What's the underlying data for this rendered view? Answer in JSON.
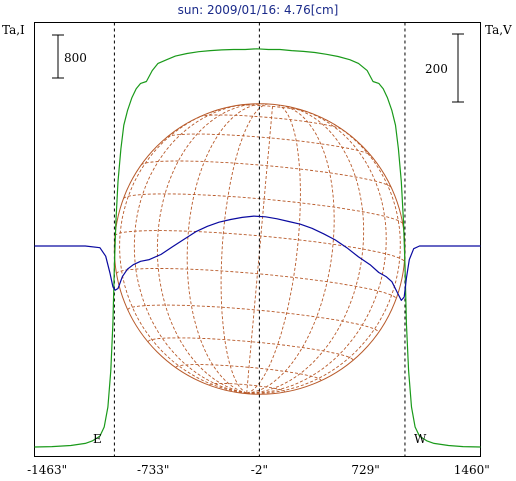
{
  "chart_data": {
    "type": "line",
    "title": "sun: 2009/01/16: 4.76[cm]",
    "left_axis_label": "Ta,I",
    "right_axis_label": "Ta,V",
    "scale_bar_left_label": "800",
    "scale_bar_right_label": "200",
    "east_label": "E",
    "west_label": "W",
    "xlim": [
      -1550,
      1520
    ],
    "x_ticks": [
      {
        "value": -1463,
        "label": "-1463\""
      },
      {
        "value": -733,
        "label": "-733\""
      },
      {
        "value": -2,
        "label": "-2\""
      },
      {
        "value": 729,
        "label": "729\""
      },
      {
        "value": 1460,
        "label": "1460\""
      }
    ],
    "limb_markers": [
      -1000,
      -2,
      1000
    ],
    "colors": {
      "stokes_i": "#1a9a1a",
      "stokes_v": "#0a0aa0",
      "grid_globe": "#b85a2a",
      "title": "#1a2a8a",
      "axis": "#000000"
    },
    "series": [
      {
        "name": "Ta,I",
        "color_key": "stokes_i",
        "x": [
          -1550,
          -1430,
          -1300,
          -1200,
          -1150,
          -1100,
          -1070,
          -1045,
          -1025,
          -1010,
          -1000,
          -990,
          -975,
          -955,
          -935,
          -910,
          -880,
          -850,
          -820,
          -780,
          -740,
          -700,
          -640,
          -580,
          -500,
          -420,
          -340,
          -260,
          -180,
          -100,
          -20,
          60,
          140,
          220,
          300,
          380,
          460,
          540,
          620,
          680,
          740,
          780,
          820,
          850,
          880,
          910,
          935,
          955,
          975,
          990,
          1000,
          1010,
          1025,
          1045,
          1070,
          1100,
          1150,
          1200,
          1300,
          1400,
          1520
        ],
        "y": [
          0,
          1,
          4,
          10,
          17,
          30,
          55,
          110,
          210,
          340,
          500,
          620,
          730,
          820,
          885,
          925,
          960,
          985,
          1000,
          1005,
          1035,
          1055,
          1065,
          1075,
          1082,
          1087,
          1090,
          1092,
          1093,
          1093,
          1095,
          1093,
          1093,
          1090,
          1088,
          1085,
          1080,
          1074,
          1065,
          1055,
          1035,
          1005,
          1000,
          985,
          960,
          925,
          885,
          820,
          730,
          620,
          500,
          340,
          210,
          110,
          55,
          30,
          17,
          10,
          4,
          1,
          0
        ]
      },
      {
        "name": "Ta,V",
        "color_key": "stokes_v",
        "x": [
          -1550,
          -1200,
          -1100,
          -1060,
          -1030,
          -1010,
          -995,
          -975,
          -945,
          -910,
          -870,
          -820,
          -760,
          -680,
          -600,
          -520,
          -440,
          -360,
          -280,
          -200,
          -120,
          -40,
          40,
          120,
          200,
          280,
          360,
          440,
          520,
          600,
          680,
          760,
          820,
          870,
          910,
          945,
          975,
          995,
          1010,
          1030,
          1060,
          1100,
          1200,
          1520
        ],
        "y": [
          0,
          0,
          -5,
          -30,
          -80,
          -120,
          -130,
          -125,
          -90,
          -68,
          -55,
          -45,
          -40,
          -25,
          -2,
          20,
          42,
          58,
          70,
          78,
          84,
          88,
          86,
          80,
          72,
          64,
          52,
          36,
          18,
          -5,
          -32,
          -55,
          -78,
          -90,
          -105,
          -135,
          -160,
          -150,
          -95,
          -40,
          -8,
          0,
          0,
          0
        ]
      }
    ]
  }
}
